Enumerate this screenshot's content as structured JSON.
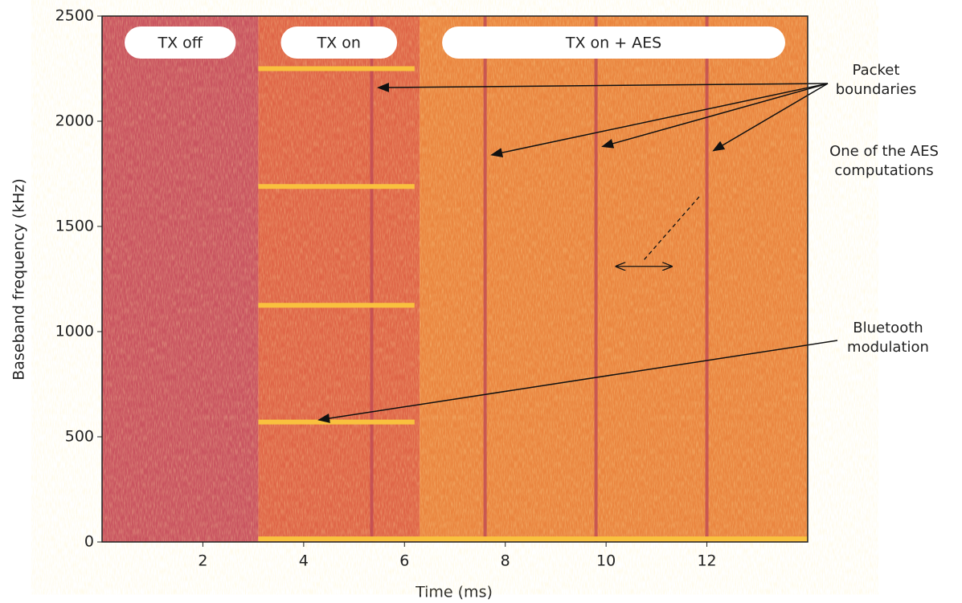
{
  "chart_data": {
    "type": "spectrogram",
    "x_label": "Time (ms)",
    "y_label": "Baseband frequency (kHz)",
    "xlim": [
      0,
      14
    ],
    "ylim": [
      0,
      2500
    ],
    "xticks": [
      2,
      4,
      6,
      8,
      10,
      12
    ],
    "yticks": [
      0,
      500,
      1000,
      1500,
      2000,
      2500
    ],
    "regions": [
      {
        "label": "TX off",
        "start": 0,
        "end": 3.1,
        "color": "#c95460"
      },
      {
        "label": "TX on",
        "start": 3.1,
        "end": 6.3,
        "color": "#df6547"
      },
      {
        "label": "TX on + AES",
        "start": 6.3,
        "end": 14,
        "color": "#ea853f"
      }
    ],
    "tones": [
      {
        "freq": 2250,
        "start": 3.1,
        "end": 6.2
      },
      {
        "freq": 1690,
        "start": 3.1,
        "end": 6.2
      },
      {
        "freq": 1125,
        "start": 3.1,
        "end": 6.2
      },
      {
        "freq": 570,
        "start": 3.1,
        "end": 6.2
      },
      {
        "freq": 15,
        "start": 3.1,
        "end": 14
      }
    ],
    "tone_color": "#f9c13e",
    "packet_boundaries": [
      5.35,
      7.6,
      9.8,
      12.0
    ],
    "boundary_color": "#c04a55",
    "aes_span": {
      "start": 10.2,
      "end": 11.3,
      "freq": 1310
    },
    "annotations": {
      "packets": "Packet boundaries",
      "aes": "One of the AES computations",
      "bluetooth": "Bluetooth modulation"
    }
  }
}
